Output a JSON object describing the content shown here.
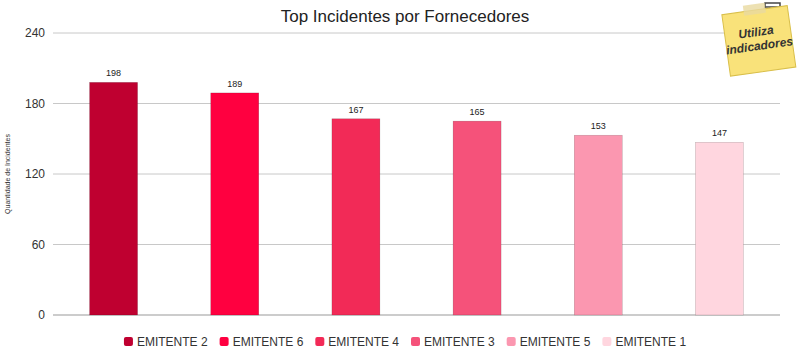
{
  "chart_data": {
    "type": "bar",
    "title": "Top Incidentes por Fornecedores",
    "y_label": "Quantidade de Incidentes",
    "annotation": "Utiliza indicadores",
    "categories": [
      "EMITENTE 2",
      "EMITENTE 6",
      "EMITENTE 4",
      "EMITENTE 3",
      "EMITENTE 5",
      "EMITENTE 1"
    ],
    "values": [
      198,
      189,
      167,
      165,
      153,
      147
    ],
    "colors": [
      "#bf0030",
      "#ff0040",
      "#f22a57",
      "#f5527a",
      "#fb97b0",
      "#ffd6df"
    ],
    "ylim": [
      0,
      240
    ],
    "yticks": [
      0,
      60,
      120,
      180,
      240
    ],
    "grid": true,
    "data_labels": true,
    "legend": "bottom"
  }
}
